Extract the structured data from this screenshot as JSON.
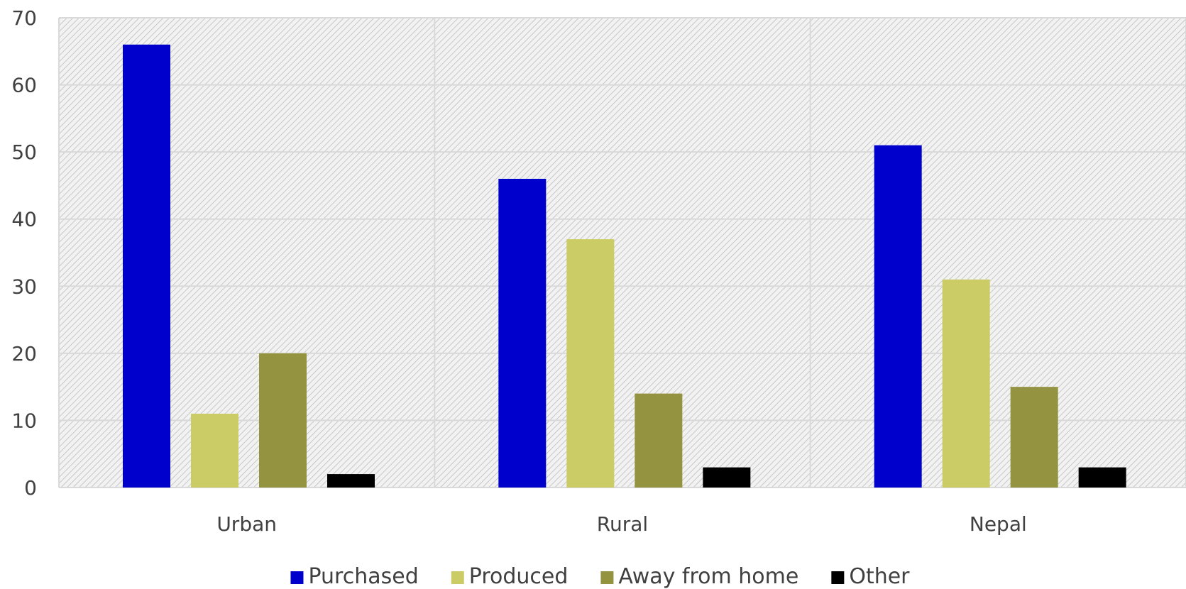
{
  "chart_data": {
    "type": "bar",
    "title": "",
    "xlabel": "",
    "ylabel": "",
    "categories": [
      "Urban",
      "Rural",
      "Nepal"
    ],
    "series": [
      {
        "name": "Purchased",
        "values": [
          66,
          46,
          51
        ],
        "color": "#0000CC"
      },
      {
        "name": "Produced",
        "values": [
          11,
          37,
          31
        ],
        "color": "#CCCC66"
      },
      {
        "name": "Away from home",
        "values": [
          20,
          14,
          15
        ],
        "color": "#939340"
      },
      {
        "name": "Other",
        "values": [
          2,
          3,
          3
        ],
        "color": "#000000"
      }
    ],
    "ylim": [
      0,
      70
    ],
    "yticks": [
      0,
      10,
      20,
      30,
      40,
      50,
      60,
      70
    ],
    "grid": true,
    "legend_position": "bottom",
    "plot_background": "hatched light grey"
  }
}
